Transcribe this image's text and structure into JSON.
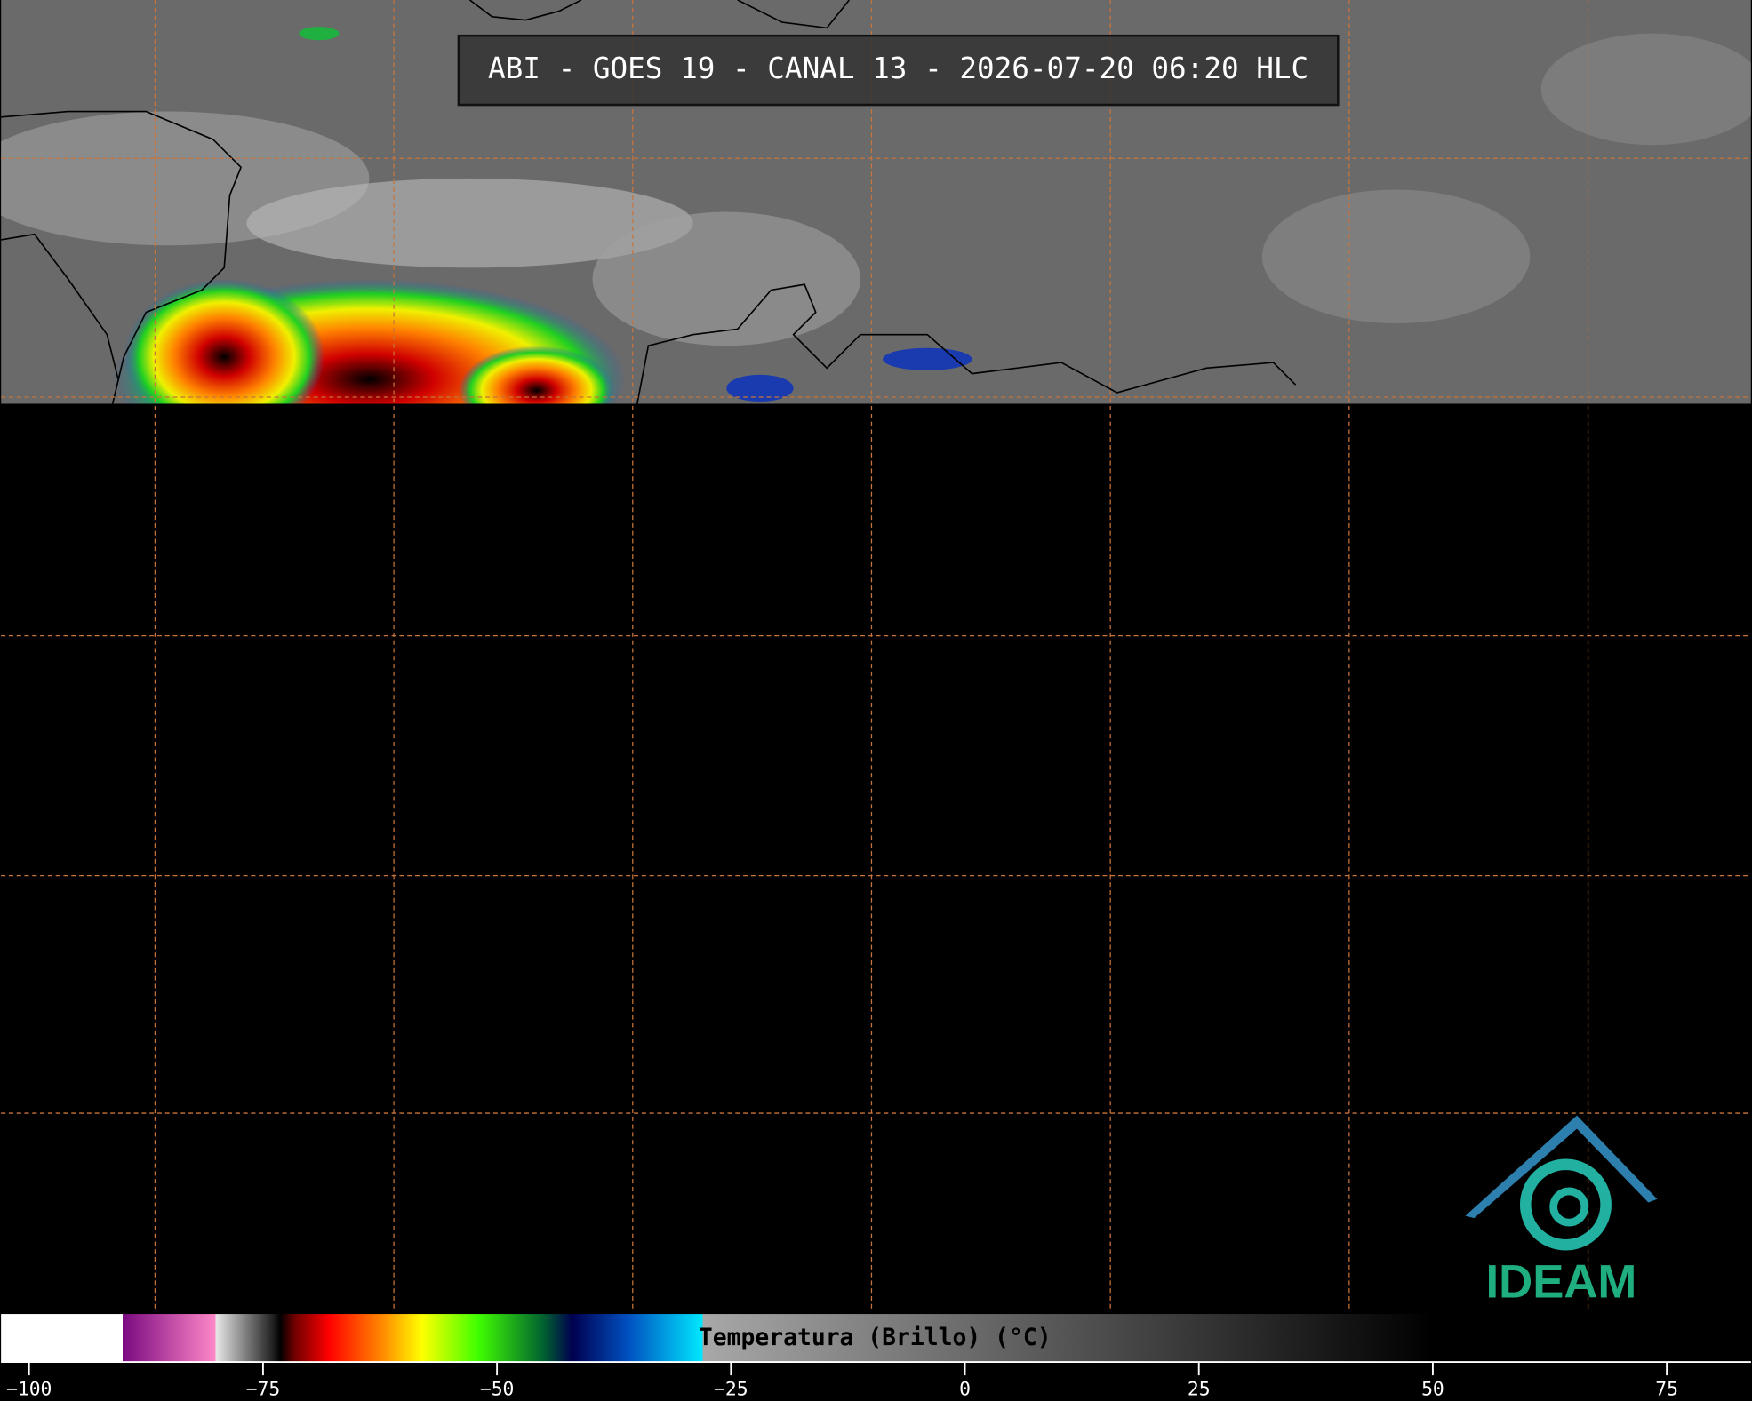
{
  "header": {
    "title": "ABI - GOES 19 - CANAL 13 - 2026-07-20 06:20 HLC"
  },
  "logo": {
    "text": "IDEAM"
  },
  "colorbar": {
    "label": "Temperatura (Brillo) (°C)",
    "xlim": [
      -103,
      84
    ],
    "xticks": [
      {
        "value": -100,
        "label": "−100"
      },
      {
        "value": -75,
        "label": "−75"
      },
      {
        "value": -50,
        "label": "−50"
      },
      {
        "value": -25,
        "label": "−25"
      },
      0,
      25,
      50,
      75
    ]
  }
}
